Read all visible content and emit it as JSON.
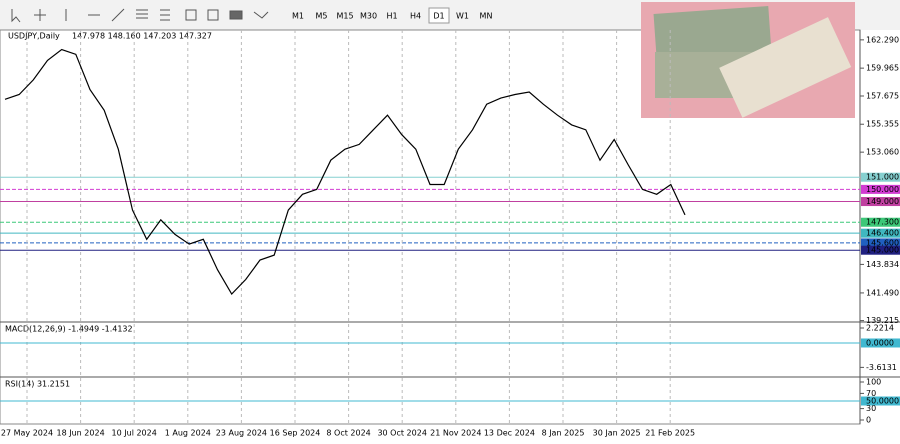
{
  "toolbar": {
    "timeframes": [
      "M1",
      "M5",
      "M15",
      "M30",
      "H1",
      "H4",
      "D1",
      "W1",
      "MN"
    ],
    "active": "D1"
  },
  "chart_data": {
    "type": "line",
    "title": "USDJPY,Daily",
    "readout": "147.978 148.160 147.203 147.327",
    "color": "#000000",
    "values": [
      157.4,
      157.8,
      159.0,
      160.6,
      161.5,
      161.1,
      158.2,
      156.5,
      153.3,
      148.3,
      145.9,
      147.5,
      146.3,
      145.5,
      145.9,
      143.4,
      141.4,
      142.6,
      144.2,
      144.6,
      148.3,
      149.6,
      150.0,
      152.4,
      153.3,
      153.7,
      154.9,
      156.1,
      154.5,
      153.3,
      150.4,
      150.4,
      153.3,
      154.9,
      157.0,
      157.5,
      157.8,
      158.0,
      157.0,
      156.1,
      155.3,
      154.9,
      152.4,
      154.1,
      152.0,
      150.0,
      149.6,
      150.4,
      147.9
    ],
    "ylim": [
      139.1,
      163.1
    ],
    "yticks": [
      {
        "value": 162.29,
        "label": "162.290"
      },
      {
        "value": 159.965,
        "label": "159.965"
      },
      {
        "value": 157.675,
        "label": "157.675"
      },
      {
        "value": 155.355,
        "label": "155.355"
      },
      {
        "value": 153.06,
        "label": "153.060"
      },
      {
        "value": 143.834,
        "label": "143.834"
      },
      {
        "value": 141.49,
        "label": "141.490"
      },
      {
        "value": 139.215,
        "label": "139.215"
      }
    ],
    "x_labels": [
      "27 May 2024",
      "18 Jun 2024",
      "10 Jul 2024",
      "1 Aug 2024",
      "23 Aug 2024",
      "16 Sep 2024",
      "8 Oct 2024",
      "30 Oct 2024",
      "21 Nov 2024",
      "13 Dec 2024",
      "8 Jan 2025",
      "30 Jan 2025",
      "21 Feb 2025"
    ],
    "price_levels": [
      {
        "value": 151,
        "label": "151.000",
        "color": "#86d0d0"
      },
      {
        "value": 150,
        "label": "150.000",
        "color": "#d23cd2"
      },
      {
        "value": 149,
        "label": "149.000",
        "color": "#c040a0"
      },
      {
        "value": 147.3,
        "label": "147.300",
        "color": "#3cc878"
      },
      {
        "value": 146.4,
        "label": "146.400",
        "color": "#40b8c0"
      },
      {
        "value": 145.6,
        "label": "145.600",
        "color": "#2060c0"
      },
      {
        "value": 145,
        "label": "145.000",
        "color": "#202080"
      }
    ]
  },
  "macd": {
    "title": "MACD(12,26,9) -1.4949 -1.4132",
    "ylim": [
      -4.89,
      2.96
    ],
    "yticks": [
      {
        "value": 2.2214,
        "label": "2.2214"
      },
      {
        "value": 0,
        "label": "0.0000"
      },
      {
        "value": -3.6131,
        "label": "-3.6131"
      }
    ]
  },
  "rsi": {
    "title": "RSI(14) 31.2151",
    "ylim": [
      0,
      100
    ],
    "yticks": [
      100,
      70,
      {
        "value": 50,
        "label": "50.0000"
      },
      30,
      0
    ]
  }
}
